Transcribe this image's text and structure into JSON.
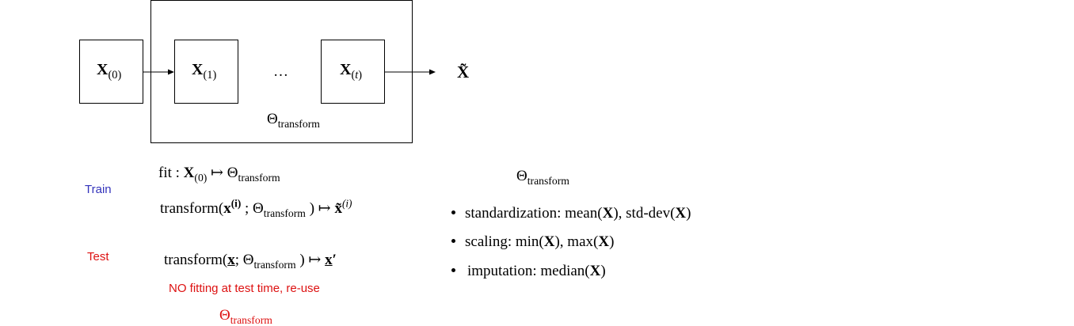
{
  "pipeline": {
    "input_symbol": "X",
    "input_index": "(0)",
    "step1_symbol": "X",
    "step1_index": "(1)",
    "ellipsis": "…",
    "stept_symbol": "X",
    "stept_index_open": "(",
    "stept_index_var": "t",
    "stept_index_close": ")",
    "output_symbol": "X̃",
    "container_theta": "Θ",
    "container_theta_sub": "transform"
  },
  "train": {
    "label": "Train",
    "label_color": "#3333bb",
    "fit": {
      "prefix": "fit : ",
      "X": "X",
      "X_sub": "(0)",
      "mapsto": " ↦ ",
      "theta": "Θ",
      "theta_sub": "transform"
    },
    "transform": {
      "prefix": "transform(",
      "x": "x",
      "x_sup": "(i)",
      "sep": " ; ",
      "theta": "Θ",
      "theta_sub": "transform",
      "close": " )",
      "mapsto": " ↦ ",
      "out": "x̃",
      "out_sup": "(i)"
    }
  },
  "test": {
    "label": "Test",
    "label_color": "#dd1111",
    "transform": {
      "prefix": "transform(",
      "x": "x",
      "sep": "; ",
      "theta": "Θ",
      "theta_sub": "transform",
      "close": " )",
      "mapsto": " ↦ ",
      "out": "x",
      "out_prime": "′"
    },
    "note": "NO fitting at test time, re-use",
    "note_theta": "Θ",
    "note_theta_sub": "transform",
    "note_color": "#dd1111"
  },
  "params": {
    "heading_theta": "Θ",
    "heading_sub": "transform",
    "items": [
      {
        "prefix": "standardization: mean(",
        "arg1": "X",
        "mid": "), std-dev(",
        "arg2": "X",
        "suffix": ")"
      },
      {
        "prefix": "scaling: min(",
        "arg1": "X",
        "mid": "), max(",
        "arg2": "X",
        "suffix": ")"
      },
      {
        "prefix": "imputation: median(",
        "arg1": "X",
        "suffix": ")"
      }
    ]
  }
}
